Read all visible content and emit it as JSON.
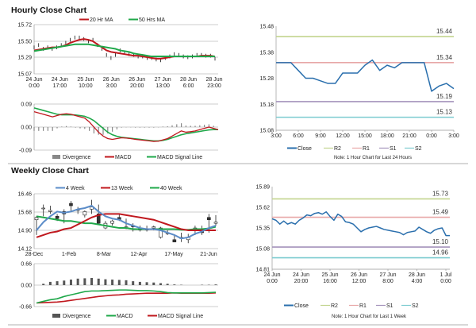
{
  "titles": {
    "hourly": "Hourly Close Chart",
    "weekly": "Weekly Close Chart"
  },
  "chart_data": [
    {
      "id": "hourly-price",
      "type": "line",
      "legend": [
        "20 Hr MA",
        "50 Hrs MA"
      ],
      "legend_placement": "top",
      "colors": {
        "ma20": "#c0181e",
        "ma50": "#1fa84a",
        "price": "#111111"
      },
      "xticks": [
        "24 Jun|0:00",
        "24 Jun|17:00",
        "25 Jun|10:00",
        "26 Jun|3:00",
        "26 Jun|20:00",
        "27 Jun|13:00",
        "28 Jun|6:00",
        "28 Jun|23:00"
      ],
      "ylim": [
        15.07,
        15.72
      ],
      "yticks": [
        "15.72",
        "15.50",
        "15.29",
        "15.07"
      ],
      "grid": true,
      "close": [
        15.42,
        15.45,
        15.4,
        15.42,
        15.4,
        15.42,
        15.45,
        15.48,
        15.52,
        15.55,
        15.55,
        15.53,
        15.5,
        15.52,
        15.45,
        15.4,
        15.32,
        15.28,
        15.32,
        15.38,
        15.35,
        15.33,
        15.32,
        15.3,
        15.3,
        15.28,
        15.28,
        15.26,
        15.25,
        15.28,
        15.3,
        15.33,
        15.32,
        15.3,
        15.29,
        15.3,
        15.32,
        15.32,
        15.31,
        15.31,
        15.27
      ],
      "series": [
        {
          "name": "20 Hr MA",
          "values": [
            15.38,
            15.39,
            15.4,
            15.41,
            15.42,
            15.42,
            15.43,
            15.45,
            15.48,
            15.5,
            15.52,
            15.53,
            15.52,
            15.5,
            15.46,
            15.42,
            15.38,
            15.36,
            15.35,
            15.34,
            15.33,
            15.32,
            15.31,
            15.31,
            15.3,
            15.29,
            15.28,
            15.27,
            15.27,
            15.28,
            15.29,
            15.3,
            15.3,
            15.3,
            15.3,
            15.3,
            15.3,
            15.31,
            15.31,
            15.31,
            15.3
          ]
        },
        {
          "name": "50 Hrs MA",
          "values": [
            15.37,
            15.38,
            15.39,
            15.4,
            15.41,
            15.42,
            15.43,
            15.44,
            15.45,
            15.46,
            15.46,
            15.46,
            15.46,
            15.45,
            15.44,
            15.43,
            15.42,
            15.41,
            15.4,
            15.38,
            15.37,
            15.36,
            15.34,
            15.33,
            15.32,
            15.31,
            15.3,
            15.3,
            15.3,
            15.3,
            15.3,
            15.3,
            15.3,
            15.3,
            15.3,
            15.3,
            15.3,
            15.3,
            15.3,
            15.3,
            15.3
          ]
        }
      ]
    },
    {
      "id": "hourly-macd",
      "type": "line",
      "legend": [
        "Divergence",
        "MACD",
        "MACD Signal Line"
      ],
      "legend_placement": "bottom",
      "colors": {
        "divergence": "#888888",
        "macd": "#c0181e",
        "signal": "#1fa84a"
      },
      "ylim": [
        -0.09,
        0.09
      ],
      "yticks": [
        "0.09",
        "0.00",
        "-0.09"
      ],
      "grid": true,
      "macd": [
        0.06,
        0.055,
        0.05,
        0.045,
        0.04,
        0.045,
        0.05,
        0.052,
        0.05,
        0.045,
        0.04,
        0.035,
        0.02,
        0.0,
        -0.02,
        -0.035,
        -0.045,
        -0.048,
        -0.045,
        -0.042,
        -0.043,
        -0.045,
        -0.048,
        -0.05,
        -0.052,
        -0.054,
        -0.056,
        -0.055,
        -0.05,
        -0.045,
        -0.035,
        -0.025,
        -0.015,
        -0.02,
        -0.018,
        -0.015,
        -0.01,
        -0.005,
        0.0,
        -0.005,
        -0.01
      ],
      "signal": [
        0.075,
        0.07,
        0.065,
        0.06,
        0.055,
        0.05,
        0.048,
        0.048,
        0.048,
        0.047,
        0.045,
        0.042,
        0.035,
        0.025,
        0.01,
        -0.005,
        -0.02,
        -0.03,
        -0.036,
        -0.04,
        -0.042,
        -0.044,
        -0.046,
        -0.048,
        -0.05,
        -0.052,
        -0.054,
        -0.054,
        -0.052,
        -0.048,
        -0.042,
        -0.036,
        -0.03,
        -0.026,
        -0.023,
        -0.02,
        -0.017,
        -0.014,
        -0.011,
        -0.01,
        -0.01
      ],
      "divergence": [
        -0.015,
        -0.015,
        -0.015,
        -0.015,
        -0.015,
        -0.005,
        0.002,
        0.004,
        0.002,
        -0.002,
        -0.005,
        -0.007,
        -0.015,
        -0.025,
        -0.03,
        -0.03,
        -0.025,
        -0.018,
        -0.009,
        -0.002,
        -0.001,
        -0.001,
        -0.002,
        -0.002,
        -0.002,
        -0.002,
        -0.002,
        -0.001,
        0.002,
        0.003,
        0.007,
        0.011,
        0.015,
        0.006,
        0.005,
        0.005,
        0.007,
        0.009,
        0.011,
        0.005,
        0.0
      ]
    },
    {
      "id": "weekly-price",
      "type": "candlestick",
      "legend": [
        "4 Week",
        "13 Week",
        "40 Week"
      ],
      "legend_placement": "top",
      "colors": {
        "w4": "#5b8cc8",
        "w13": "#c0181e",
        "w40": "#1fa84a"
      },
      "xticks": [
        "28-Dec",
        "1-Feb",
        "8-Mar",
        "12-Apr",
        "17-May",
        "21-Jun"
      ],
      "ylim": [
        14.12,
        16.46
      ],
      "yticks": [
        "16.46",
        "15.68",
        "14.90",
        "14.12"
      ],
      "grid": true,
      "ohlc": [
        [
          15.35,
          15.5,
          14.7,
          15.45
        ],
        [
          15.85,
          16.0,
          15.5,
          15.85
        ],
        [
          15.7,
          15.95,
          15.6,
          15.75
        ],
        [
          15.5,
          15.6,
          15.3,
          15.4
        ],
        [
          15.7,
          15.8,
          15.2,
          15.6
        ],
        [
          16.05,
          16.15,
          15.7,
          15.95
        ],
        [
          15.75,
          15.9,
          15.6,
          15.8
        ],
        [
          15.55,
          15.75,
          15.45,
          15.7
        ],
        [
          15.8,
          16.2,
          15.6,
          15.9
        ],
        [
          15.6,
          16.0,
          15.2,
          15.2
        ],
        [
          15.0,
          15.3,
          14.95,
          15.2
        ],
        [
          15.2,
          15.35,
          15.1,
          15.3
        ],
        [
          15.45,
          15.6,
          15.3,
          15.35
        ],
        [
          15.0,
          15.4,
          14.95,
          15.05
        ],
        [
          15.1,
          15.2,
          14.85,
          15.05
        ],
        [
          14.95,
          15.1,
          14.85,
          14.95
        ],
        [
          14.95,
          15.1,
          14.85,
          14.95
        ],
        [
          15.0,
          15.1,
          14.9,
          15.05
        ],
        [
          14.6,
          15.05,
          14.55,
          15.0
        ],
        [
          14.75,
          14.9,
          14.7,
          14.8
        ],
        [
          14.5,
          14.7,
          14.4,
          14.4
        ],
        [
          14.55,
          14.8,
          14.4,
          14.6
        ],
        [
          14.5,
          14.75,
          14.35,
          14.6
        ],
        [
          14.9,
          15.1,
          14.7,
          15.0
        ],
        [
          14.85,
          15.1,
          14.7,
          14.8
        ],
        [
          15.45,
          15.6,
          14.8,
          15.35
        ],
        [
          15.2,
          15.55,
          15.1,
          15.25
        ]
      ],
      "series": [
        {
          "name": "4 Week",
          "values": [
            14.9,
            15.25,
            15.5,
            15.7,
            15.65,
            15.7,
            15.8,
            15.85,
            15.95,
            15.7,
            15.5,
            15.4,
            15.35,
            15.2,
            15.1,
            15.0,
            14.95,
            14.95,
            14.9,
            14.8,
            14.7,
            14.55,
            14.6,
            14.75,
            14.85,
            15.0,
            15.1
          ]
        },
        {
          "name": "13 Week",
          "values": [
            14.6,
            14.7,
            14.8,
            14.85,
            14.95,
            15.0,
            15.15,
            15.3,
            15.45,
            15.55,
            15.6,
            15.6,
            15.6,
            15.55,
            15.5,
            15.45,
            15.4,
            15.35,
            15.25,
            15.15,
            15.05,
            14.95,
            14.9,
            14.9,
            14.9,
            14.9,
            14.9
          ]
        },
        {
          "name": "40 Week",
          "values": [
            15.5,
            15.45,
            15.4,
            15.35,
            15.3,
            15.3,
            15.25,
            15.2,
            15.2,
            15.15,
            15.1,
            15.05,
            15.0,
            15.0,
            14.95,
            14.95,
            14.95,
            14.95,
            14.95,
            14.95,
            14.95,
            14.92,
            14.92,
            14.95,
            14.95,
            14.98,
            15.05
          ]
        }
      ]
    },
    {
      "id": "weekly-macd",
      "type": "line",
      "legend": [
        "Divergence",
        "MACD",
        "MACD Signal Line"
      ],
      "legend_placement": "bottom",
      "colors": {
        "divergence": "#555555",
        "macd": "#1fa84a",
        "signal": "#c0181e"
      },
      "ylim": [
        -0.66,
        0.66
      ],
      "yticks": [
        "0.66",
        "0.00",
        "-0.66"
      ],
      "grid": true,
      "divergence": [
        0,
        0.04,
        0.1,
        0.12,
        0.14,
        0.17,
        0.2,
        0.21,
        0.22,
        0.2,
        0.18,
        0.17,
        0.16,
        0.15,
        0.12,
        0.1,
        0.09,
        0.08,
        0.06,
        0.04,
        0.02,
        0.01,
        0.0,
        0.0,
        0.01,
        0.01,
        0.02
      ],
      "macd": [
        -0.55,
        -0.5,
        -0.45,
        -0.42,
        -0.35,
        -0.3,
        -0.25,
        -0.2,
        -0.18,
        -0.18,
        -0.17,
        -0.16,
        -0.15,
        -0.15,
        -0.16,
        -0.17,
        -0.17,
        -0.18,
        -0.2,
        -0.23,
        -0.24,
        -0.24,
        -0.24,
        -0.24,
        -0.24,
        -0.23,
        -0.22
      ],
      "signal": [
        -0.55,
        -0.54,
        -0.53,
        -0.52,
        -0.5,
        -0.47,
        -0.44,
        -0.41,
        -0.38,
        -0.35,
        -0.33,
        -0.31,
        -0.3,
        -0.28,
        -0.27,
        -0.26,
        -0.25,
        -0.25,
        -0.25,
        -0.25,
        -0.24,
        -0.25,
        -0.25,
        -0.25,
        -0.25,
        -0.25,
        -0.24
      ]
    },
    {
      "id": "hourly-levels",
      "type": "line",
      "legend": [
        "Close",
        "R2",
        "R1",
        "S1",
        "S2"
      ],
      "legend_placement": "bottom",
      "note": "Note: 1 Hour Chart for Last 24 Hours",
      "xticks": [
        "3:00",
        "6:00",
        "9:00",
        "12:00",
        "15:00",
        "18:00",
        "21:00",
        "0:00",
        "3:00"
      ],
      "ylim": [
        15.08,
        15.48
      ],
      "yticks": [
        "15.48",
        "15.38",
        "15.28",
        "15.18",
        "15.08"
      ],
      "grid": false,
      "levels": [
        {
          "name": "R2",
          "value": 15.44,
          "label": "15.44",
          "color": "#c2d48e"
        },
        {
          "name": "R1",
          "value": 15.34,
          "label": "15.34",
          "color": "#e8a7a7"
        },
        {
          "name": "S1",
          "value": 15.19,
          "label": "15.19",
          "color": "#a493bb"
        },
        {
          "name": "S2",
          "value": 15.13,
          "label": "15.13",
          "color": "#7ccbd0"
        }
      ],
      "close_color": "#2a6fad",
      "close": [
        15.34,
        15.34,
        15.34,
        15.31,
        15.28,
        15.28,
        15.27,
        15.26,
        15.26,
        15.3,
        15.3,
        15.3,
        15.33,
        15.35,
        15.31,
        15.33,
        15.32,
        15.34,
        15.34,
        15.34,
        15.34,
        15.23,
        15.25,
        15.26,
        15.24
      ]
    },
    {
      "id": "weekly-levels",
      "type": "line",
      "legend": [
        "Close",
        "R2",
        "R1",
        "S1",
        "S2"
      ],
      "legend_placement": "bottom",
      "note": "Note: 1 Hour Chart for Last 1 Week",
      "xticks": [
        "24 Jun|0:00",
        "24 Jun|20:00",
        "25 Jun|16:00",
        "26 Jun|12:00",
        "27 Jun|8:00",
        "28 Jun|4:00",
        "1 Jul|0:00"
      ],
      "ylim": [
        14.81,
        15.89
      ],
      "yticks": [
        "15.89",
        "15.62",
        "15.35",
        "15.08",
        "14.81"
      ],
      "grid": false,
      "levels": [
        {
          "name": "R2",
          "value": 15.73,
          "label": "15.73",
          "color": "#c2d48e"
        },
        {
          "name": "R1",
          "value": 15.49,
          "label": "15.49",
          "color": "#e8a7a7"
        },
        {
          "name": "S1",
          "value": 15.1,
          "label": "15.10",
          "color": "#a493bb"
        },
        {
          "name": "S2",
          "value": 14.96,
          "label": "14.96",
          "color": "#7ccbd0"
        }
      ],
      "close_color": "#2a6fad",
      "close": [
        15.47,
        15.45,
        15.4,
        15.44,
        15.4,
        15.42,
        15.4,
        15.45,
        15.48,
        15.52,
        15.51,
        15.54,
        15.55,
        15.53,
        15.56,
        15.5,
        15.45,
        15.53,
        15.5,
        15.43,
        15.42,
        15.4,
        15.35,
        15.3,
        15.33,
        15.35,
        15.36,
        15.37,
        15.35,
        15.33,
        15.32,
        15.31,
        15.3,
        15.29,
        15.26,
        15.29,
        15.3,
        15.31,
        15.36,
        15.33,
        15.3,
        15.28,
        15.32,
        15.34,
        15.35,
        15.25,
        15.25
      ]
    }
  ]
}
